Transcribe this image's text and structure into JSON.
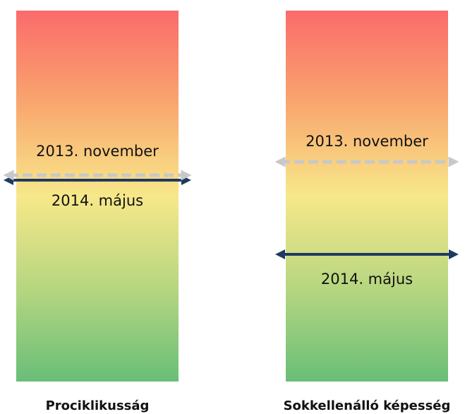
{
  "panels": [
    {
      "title": "Prociklikusság",
      "markers": [
        {
          "label": "2013. november"
        },
        {
          "label": "2014. május"
        }
      ]
    },
    {
      "title": "Sokkellenálló képesség",
      "markers": [
        {
          "label": "2013. november"
        },
        {
          "label": "2014. május"
        }
      ]
    }
  ]
}
